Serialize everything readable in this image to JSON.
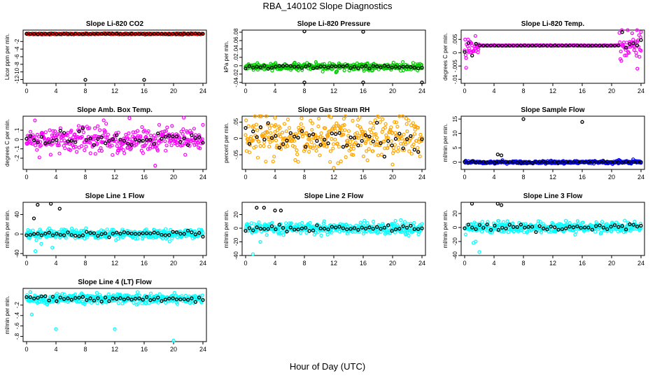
{
  "title": "RBA_140102  Slope Diagnostics",
  "xlabel": "Hour of Day (UTC)",
  "colors": {
    "black": "#000000",
    "red": "#ff0000",
    "green": "#00cc00",
    "magenta": "#ff00ff",
    "orange": "#ffa500",
    "blue": "#0000ff",
    "cyan": "#00ffff"
  },
  "chart_data": [
    {
      "type": "scatter",
      "title": "Slope Li-820 CO2",
      "ylabel": "Licor ppm per min.",
      "xlim": [
        0,
        24
      ],
      "ylim": [
        -13,
        1
      ],
      "xticks": [
        0,
        4,
        8,
        12,
        16,
        20,
        24
      ],
      "yticks": [
        -12,
        -10,
        -8,
        -6,
        -4,
        -2
      ],
      "dense_color": "red",
      "dense_mean": 0,
      "dense_sd": 0.08,
      "outliers": [
        [
          8,
          -12.1
        ],
        [
          16,
          -12.1
        ]
      ]
    },
    {
      "type": "scatter",
      "title": "Slope Li-820 Pressure",
      "ylabel": "kPa per min.",
      "xlim": [
        0,
        24
      ],
      "ylim": [
        -0.042,
        0.085
      ],
      "xticks": [
        0,
        4,
        8,
        12,
        16,
        20,
        24
      ],
      "yticks": [
        -0.04,
        -0.02,
        0,
        0.02,
        0.04,
        0.06,
        0.08
      ],
      "dense_color": "green",
      "dense_mean": -0.003,
      "dense_sd": 0.004,
      "outliers": [
        [
          8,
          0.082
        ],
        [
          16,
          0.081
        ],
        [
          8,
          -0.04
        ],
        [
          16,
          -0.04
        ],
        [
          24,
          -0.04
        ]
      ]
    },
    {
      "type": "scatter",
      "title": "Slope Li-820 Temp.",
      "ylabel": "degrees C per min.",
      "xlim": [
        0,
        24
      ],
      "ylim": [
        -0.0115,
        0.0085
      ],
      "xticks": [
        0,
        4,
        8,
        12,
        16,
        20,
        24
      ],
      "yticks": [
        -0.01,
        -0.005,
        0,
        0.005
      ],
      "dense_color": "magenta",
      "dense_mean": 0.0027,
      "dense_sd": 0.0015,
      "outliers": [
        [
          24,
          0.0078
        ],
        [
          23.5,
          -0.006
        ],
        [
          0.2,
          -0.002
        ]
      ]
    },
    {
      "type": "scatter",
      "title": "Slope Amb. Box Temp.",
      "ylabel": "degrees C per min.",
      "xlim": [
        0,
        24
      ],
      "ylim": [
        -0.32,
        0.25
      ],
      "xticks": [
        0,
        4,
        8,
        12,
        16,
        20,
        24
      ],
      "yticks": [
        -0.2,
        -0.1,
        0,
        0.1
      ],
      "dense_color": "magenta",
      "dense_mean": 0.0,
      "dense_sd": 0.07,
      "outliers": [
        [
          17.5,
          -0.28
        ],
        [
          14,
          0.23
        ]
      ]
    },
    {
      "type": "scatter",
      "title": "Slope Gas Stream RH",
      "ylabel": "percent per min.",
      "xlim": [
        0,
        24
      ],
      "ylim": [
        -0.095,
        0.068
      ],
      "xticks": [
        0,
        4,
        8,
        12,
        16,
        20,
        24
      ],
      "yticks": [
        -0.05,
        0,
        0.05
      ],
      "dense_color": "orange",
      "dense_mean": 0.0,
      "dense_sd": 0.032,
      "outliers": [
        [
          12,
          -0.09
        ],
        [
          20,
          -0.08
        ],
        [
          4,
          0.063
        ]
      ]
    },
    {
      "type": "scatter",
      "title": "Slope Sample Flow",
      "ylabel": "ml/min per min.",
      "xlim": [
        0,
        24
      ],
      "ylim": [
        -2.5,
        16
      ],
      "xticks": [
        0,
        4,
        8,
        12,
        16,
        20,
        24
      ],
      "yticks": [
        0,
        5,
        10,
        15
      ],
      "dense_color": "blue",
      "dense_mean": 0.0,
      "dense_sd": 0.25,
      "outliers": [
        [
          8,
          15
        ],
        [
          16,
          14
        ],
        [
          4.5,
          2.7
        ],
        [
          5,
          2.4
        ]
      ]
    },
    {
      "type": "scatter",
      "title": "Slope Line 1 Flow",
      "ylabel": "ml/min per min.",
      "xlim": [
        0,
        24
      ],
      "ylim": [
        -44,
        65
      ],
      "xticks": [
        0,
        4,
        8,
        12,
        16,
        20,
        24
      ],
      "yticks": [
        -40,
        0,
        40
      ],
      "dense_color": "cyan",
      "dense_mean": 0,
      "dense_sd": 5,
      "outliers": [
        [
          1.5,
          60
        ],
        [
          3.3,
          62
        ],
        [
          4.5,
          52
        ],
        [
          1.2,
          -35
        ],
        [
          3.5,
          -28
        ],
        [
          1,
          32
        ],
        [
          2,
          -20
        ]
      ]
    },
    {
      "type": "scatter",
      "title": "Slope Line 2 Flow",
      "ylabel": "ml/min per min.",
      "xlim": [
        0,
        24
      ],
      "ylim": [
        -40,
        38
      ],
      "xticks": [
        0,
        4,
        8,
        12,
        16,
        20,
        24
      ],
      "yticks": [
        -40,
        -20,
        0,
        20
      ],
      "dense_color": "cyan",
      "dense_mean": 0,
      "dense_sd": 4,
      "outliers": [
        [
          1,
          -38
        ],
        [
          1.5,
          30
        ],
        [
          2.5,
          30
        ],
        [
          4,
          26
        ],
        [
          4.8,
          26
        ],
        [
          2,
          -20
        ]
      ]
    },
    {
      "type": "scatter",
      "title": "Slope Line 3 Flow",
      "ylabel": "ml/min per min.",
      "xlim": [
        0,
        24
      ],
      "ylim": [
        -40,
        36
      ],
      "xticks": [
        0,
        4,
        8,
        12,
        16,
        20,
        24
      ],
      "yticks": [
        -40,
        -20,
        0,
        20
      ],
      "dense_color": "cyan",
      "dense_mean": 0,
      "dense_sd": 4,
      "outliers": [
        [
          1,
          34
        ],
        [
          1.5,
          -20
        ],
        [
          2,
          -35
        ],
        [
          4.5,
          34
        ],
        [
          5,
          32
        ],
        [
          1.2,
          -22
        ]
      ]
    },
    {
      "type": "scatter",
      "title": "Slope Line 4 (LT) Flow",
      "ylabel": "ml/min per min.",
      "xlim": [
        0,
        24
      ],
      "ylim": [
        -0.9,
        0.12
      ],
      "xticks": [
        0,
        4,
        8,
        12,
        16,
        20,
        24
      ],
      "yticks": [
        -0.8,
        -0.6,
        -0.4,
        -0.2
      ],
      "dense_color": "cyan",
      "dense_mean": -0.08,
      "dense_sd": 0.045,
      "outliers": [
        [
          4,
          -0.66
        ],
        [
          12,
          -0.66
        ],
        [
          20,
          -0.88
        ],
        [
          0.5,
          0.05
        ],
        [
          0.7,
          -0.38
        ]
      ]
    }
  ]
}
